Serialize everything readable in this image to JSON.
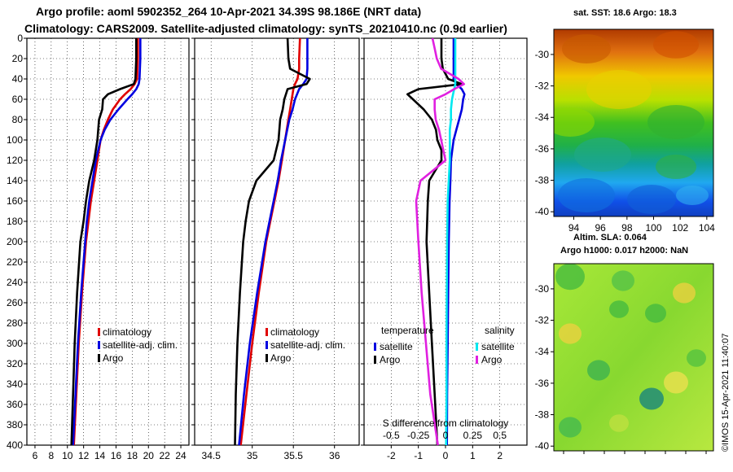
{
  "title_line1": "Argo profile: aoml 5902352_264 10-Apr-2021 34.39S 98.186E (NRT data)",
  "title_line2": "Climatology: CARS2009. Satellite-adjusted climatology: synTS_20210410.nc (0.9d earlier)",
  "sst_map_title": "sat. SST: 18.6 Argo: 18.3",
  "sla_map_title1": "Altim. SLA: 0.064",
  "sla_map_title2": "Argo h1000: 0.017 h2000: NaN",
  "copyright": "©IMOS 15-Apr-2021 11:40:07",
  "colors": {
    "climatology": "#e00000",
    "satellite": "#0000e0",
    "argo": "#000000",
    "sat_salinity": "#00e8f0",
    "argo_salinity": "#e020e0"
  },
  "chart_data": [
    {
      "type": "line",
      "name": "temperature_profile",
      "xlabel": "",
      "ylabel": "",
      "xlim": [
        5,
        25
      ],
      "ylim": [
        400,
        0
      ],
      "x_ticks": [
        "6",
        "8",
        "10",
        "12",
        "14",
        "16",
        "18",
        "20",
        "22",
        "24"
      ],
      "y_ticks": [
        "0",
        "20",
        "40",
        "60",
        "80",
        "100",
        "120",
        "140",
        "160",
        "180",
        "200",
        "220",
        "240",
        "260",
        "280",
        "300",
        "320",
        "340",
        "360",
        "380",
        "400"
      ],
      "depth": [
        0,
        20,
        40,
        45,
        50,
        55,
        60,
        70,
        80,
        90,
        100,
        120,
        140,
        160,
        180,
        200,
        250,
        300,
        350,
        400
      ],
      "series": [
        {
          "name": "climatology",
          "values": [
            18.7,
            18.7,
            18.6,
            18.3,
            17.8,
            17.1,
            16.5,
            15.6,
            15.0,
            14.5,
            14.1,
            13.7,
            13.3,
            12.9,
            12.6,
            12.3,
            11.8,
            11.4,
            11.1,
            10.8
          ]
        },
        {
          "name": "satellite-adj. clim.",
          "values": [
            19.0,
            19.0,
            18.9,
            18.8,
            18.5,
            18.0,
            17.4,
            16.3,
            15.3,
            14.6,
            14.1,
            13.5,
            13.1,
            12.7,
            12.4,
            12.2,
            11.7,
            11.3,
            11.0,
            10.7
          ]
        },
        {
          "name": "Argo",
          "values": [
            18.5,
            18.5,
            18.4,
            18.2,
            16.5,
            15.0,
            14.4,
            14.3,
            13.9,
            13.8,
            13.7,
            13.3,
            12.7,
            12.3,
            12.0,
            11.6,
            11.2,
            10.9,
            10.7,
            10.5
          ]
        }
      ],
      "legend": [
        "climatology",
        "satellite-adj. clim.",
        "Argo"
      ]
    },
    {
      "type": "line",
      "name": "salinity_profile",
      "xlim": [
        34.3,
        36.3
      ],
      "ylim": [
        400,
        0
      ],
      "x_ticks": [
        "34.5",
        "35",
        "35.5",
        "36"
      ],
      "depth": [
        0,
        20,
        30,
        40,
        45,
        50,
        60,
        70,
        80,
        100,
        120,
        140,
        160,
        180,
        200,
        250,
        300,
        350,
        400
      ],
      "series": [
        {
          "name": "climatology",
          "values": [
            35.58,
            35.57,
            35.57,
            35.55,
            35.52,
            35.5,
            35.48,
            35.46,
            35.44,
            35.4,
            35.36,
            35.32,
            35.27,
            35.22,
            35.17,
            35.08,
            35.0,
            34.93,
            34.86
          ]
        },
        {
          "name": "satellite-adj. clim.",
          "values": [
            35.67,
            35.67,
            35.67,
            35.66,
            35.62,
            35.57,
            35.52,
            35.49,
            35.45,
            35.4,
            35.35,
            35.31,
            35.26,
            35.21,
            35.16,
            35.06,
            34.97,
            34.9,
            34.84
          ]
        },
        {
          "name": "Argo",
          "values": [
            35.43,
            35.44,
            35.46,
            35.7,
            35.66,
            35.43,
            35.39,
            35.37,
            35.34,
            35.32,
            35.26,
            35.05,
            34.96,
            34.92,
            34.89,
            34.85,
            34.82,
            34.8,
            34.79
          ]
        }
      ],
      "legend": [
        "climatology",
        "satellite-adj. clim.",
        "Argo"
      ]
    },
    {
      "type": "line",
      "name": "difference_from_climatology",
      "xlim": [
        -3,
        3
      ],
      "ylim": [
        400,
        0
      ],
      "x_ticks": [
        "-2",
        "-1",
        "0",
        "1",
        "2"
      ],
      "x2_ticks": [
        "-0.5",
        "-0.25",
        "0",
        "0.25",
        "0.5"
      ],
      "x2_label": "S difference from climatology",
      "depth": [
        0,
        10,
        20,
        30,
        40,
        45,
        50,
        55,
        60,
        70,
        80,
        90,
        100,
        110,
        120,
        140,
        160,
        200,
        250,
        300,
        350,
        400
      ],
      "series": [
        {
          "name": "temperature satellite",
          "values": [
            0.3,
            0.3,
            0.3,
            0.3,
            0.3,
            0.4,
            0.6,
            0.7,
            0.65,
            0.6,
            0.5,
            0.4,
            0.3,
            0.25,
            0.2,
            0.18,
            0.15,
            0.12,
            0.1,
            0.08,
            0.06,
            0.05
          ]
        },
        {
          "name": "temperature Argo",
          "values": [
            -0.15,
            -0.15,
            -0.15,
            -0.1,
            0.1,
            0.6,
            -1.0,
            -1.4,
            -1.2,
            -0.8,
            -0.5,
            -0.35,
            -0.3,
            -0.15,
            -0.15,
            -0.6,
            -0.65,
            -0.7,
            -0.6,
            -0.5,
            -0.4,
            -0.3
          ]
        },
        {
          "name": "salinity satellite",
          "values": [
            0.09,
            0.09,
            0.09,
            0.09,
            0.09,
            0.09,
            0.08,
            0.07,
            0.06,
            0.05,
            0.05,
            0.04,
            0.04,
            0.04,
            0.04,
            0.03,
            0.02,
            0.015,
            0.012,
            0.01,
            0.01,
            0.005
          ]
        },
        {
          "name": "salinity Argo",
          "values": [
            -0.12,
            -0.1,
            -0.08,
            -0.04,
            0.12,
            0.17,
            0.08,
            0.0,
            -0.1,
            -0.1,
            -0.09,
            -0.06,
            -0.04,
            -0.02,
            0.0,
            -0.23,
            -0.27,
            -0.25,
            -0.22,
            -0.18,
            -0.14,
            -0.07
          ]
        }
      ],
      "legend_temperature_title": "temperature",
      "legend_salinity_title": "salinity",
      "legend_temperature": [
        "satellite",
        "Argo"
      ],
      "legend_salinity": [
        "satellite",
        "Argo"
      ]
    },
    {
      "type": "heatmap",
      "name": "sst_map",
      "x_ticks": [
        "94",
        "96",
        "98",
        "100",
        "102",
        "104"
      ],
      "y_ticks": [
        "-30",
        "-32",
        "-34",
        "-36",
        "-38",
        "-40"
      ],
      "xlim": [
        92.5,
        104.5
      ],
      "ylim": [
        -40.3,
        -28.4
      ]
    },
    {
      "type": "heatmap",
      "name": "sla_map",
      "y_ticks": [
        "-30",
        "-32",
        "-34",
        "-36",
        "-38",
        "-40"
      ],
      "ylim": [
        -40.3,
        -28.4
      ]
    }
  ]
}
